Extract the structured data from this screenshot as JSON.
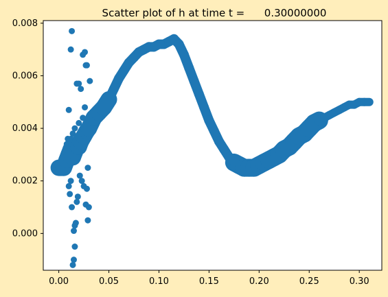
{
  "chart_data": {
    "type": "scatter",
    "title": "Scatter plot of h at time t =      0.30000000",
    "xlabel": "",
    "ylabel": "",
    "xlim": [
      -0.0155,
      0.3225
    ],
    "ylim": [
      -0.0014,
      0.0081
    ],
    "xticks": [
      0.0,
      0.05,
      0.1,
      0.15,
      0.2,
      0.25,
      0.3
    ],
    "xtick_labels": [
      "0.00",
      "0.05",
      "0.10",
      "0.15",
      "0.20",
      "0.25",
      "0.30"
    ],
    "yticks": [
      0.0,
      0.002,
      0.004,
      0.006,
      0.008
    ],
    "ytick_labels": [
      "0.000",
      "0.002",
      "0.004",
      "0.006",
      "0.008"
    ],
    "grid": false,
    "legend": "none",
    "marker_color": "#1f77b4",
    "series": [
      {
        "x": [
          0.0,
          0.005,
          0.008,
          0.01,
          0.012,
          0.014,
          0.016,
          0.018,
          0.02,
          0.022,
          0.025,
          0.028,
          0.03,
          0.035,
          0.04,
          0.045,
          0.05,
          0.055,
          0.06,
          0.065,
          0.07,
          0.075,
          0.08,
          0.085,
          0.09,
          0.095,
          0.1,
          0.105,
          0.11,
          0.115,
          0.12,
          0.125,
          0.13,
          0.135,
          0.14,
          0.145,
          0.15,
          0.155,
          0.16,
          0.165,
          0.17,
          0.175,
          0.18,
          0.185,
          0.19,
          0.195,
          0.2,
          0.205,
          0.21,
          0.215,
          0.22,
          0.225,
          0.23,
          0.235,
          0.24,
          0.245,
          0.25,
          0.255,
          0.26,
          0.265,
          0.27,
          0.275,
          0.28,
          0.285,
          0.29,
          0.295,
          0.3,
          0.305,
          0.31,
          0.01,
          0.012,
          0.013,
          0.014,
          0.015,
          0.016,
          0.017,
          0.018,
          0.02,
          0.022,
          0.024,
          0.026,
          0.027,
          0.028,
          0.029,
          0.03,
          0.031,
          0.01,
          0.011,
          0.012,
          0.013,
          0.015,
          0.016,
          0.018,
          0.019,
          0.021,
          0.023,
          0.025,
          0.027,
          0.028,
          0.029,
          0.012,
          0.014,
          0.016,
          0.02,
          0.024,
          0.008,
          0.009,
          0.026
        ],
        "y": [
          0.0025,
          0.0025,
          0.0028,
          0.003,
          0.0032,
          0.0029,
          0.0031,
          0.0034,
          0.0033,
          0.0035,
          0.0037,
          0.0039,
          0.004,
          0.0044,
          0.0046,
          0.0048,
          0.0051,
          0.0055,
          0.0059,
          0.0062,
          0.0065,
          0.0067,
          0.0069,
          0.007,
          0.0071,
          0.0071,
          0.0072,
          0.0072,
          0.0073,
          0.0074,
          0.0072,
          0.0068,
          0.0063,
          0.0058,
          0.0053,
          0.0048,
          0.0043,
          0.0039,
          0.0035,
          0.0032,
          0.0029,
          0.0027,
          0.0026,
          0.0025,
          0.0025,
          0.0025,
          0.0026,
          0.0027,
          0.0028,
          0.0029,
          0.003,
          0.0032,
          0.0033,
          0.0035,
          0.0037,
          0.0038,
          0.004,
          0.0042,
          0.0043,
          0.0044,
          0.0045,
          0.0046,
          0.0047,
          0.0048,
          0.0049,
          0.0049,
          0.005,
          0.005,
          0.005,
          0.0047,
          0.007,
          0.0077,
          -0.0012,
          -0.001,
          -0.0005,
          0.0004,
          0.0057,
          0.0057,
          0.0055,
          0.0068,
          0.0069,
          0.0064,
          0.0064,
          0.0005,
          0.001,
          0.0058,
          0.0018,
          0.0015,
          0.002,
          0.001,
          0.0001,
          0.0003,
          0.0012,
          0.0014,
          0.0022,
          0.002,
          0.0018,
          0.0011,
          0.0017,
          0.0025,
          0.0036,
          0.0038,
          0.004,
          0.0042,
          0.0044,
          0.0034,
          0.0036,
          0.0048
        ]
      }
    ]
  }
}
